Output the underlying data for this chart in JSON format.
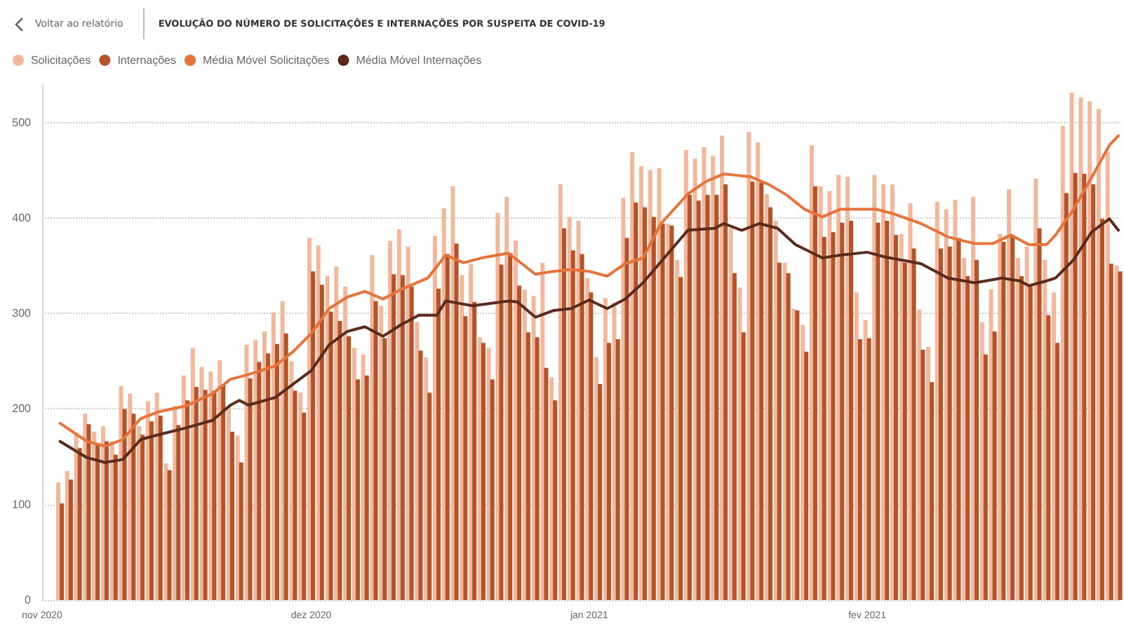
{
  "chart_data": {
    "type": "bar",
    "title": "EVOLUÇÃO DO NÚMERO DE SOLICITAÇÕES E INTERNAÇÕES POR SUSPEITA DE COVID-19",
    "annotations": [
      "Voltar ao relatório"
    ],
    "x": [
      "2020-11-03",
      "2020-11-04",
      "2020-11-05",
      "2020-11-06",
      "2020-11-07",
      "2020-11-08",
      "2020-11-09",
      "2020-11-10",
      "2020-11-11",
      "2020-11-12",
      "2020-11-13",
      "2020-11-14",
      "2020-11-15",
      "2020-11-16",
      "2020-11-17",
      "2020-11-18",
      "2020-11-19",
      "2020-11-20",
      "2020-11-21",
      "2020-11-22",
      "2020-11-23",
      "2020-11-24",
      "2020-11-25",
      "2020-11-26",
      "2020-11-27",
      "2020-11-28",
      "2020-11-29",
      "2020-11-30",
      "2020-12-01",
      "2020-12-02",
      "2020-12-03",
      "2020-12-04",
      "2020-12-05",
      "2020-12-06",
      "2020-12-07",
      "2020-12-08",
      "2020-12-09",
      "2020-12-10",
      "2020-12-11",
      "2020-12-12",
      "2020-12-13",
      "2020-12-14",
      "2020-12-15",
      "2020-12-16",
      "2020-12-17",
      "2020-12-18",
      "2020-12-19",
      "2020-12-20",
      "2020-12-21",
      "2020-12-22",
      "2020-12-23",
      "2020-12-24",
      "2020-12-25",
      "2020-12-26",
      "2020-12-27",
      "2020-12-28",
      "2020-12-29",
      "2020-12-30",
      "2020-12-31",
      "2021-01-01",
      "2021-01-02",
      "2021-01-03",
      "2021-01-04",
      "2021-01-05",
      "2021-01-06",
      "2021-01-07",
      "2021-01-08",
      "2021-01-09",
      "2021-01-10",
      "2021-01-11",
      "2021-01-12",
      "2021-01-13",
      "2021-01-14",
      "2021-01-15",
      "2021-01-16",
      "2021-01-17",
      "2021-01-18",
      "2021-01-19",
      "2021-01-20",
      "2021-01-21",
      "2021-01-22",
      "2021-01-23",
      "2021-01-24",
      "2021-01-25",
      "2021-01-26",
      "2021-01-27",
      "2021-01-28",
      "2021-01-29",
      "2021-01-30",
      "2021-01-31",
      "2021-02-01",
      "2021-02-02",
      "2021-02-03",
      "2021-02-04",
      "2021-02-05",
      "2021-02-06",
      "2021-02-07",
      "2021-02-08",
      "2021-02-09",
      "2021-02-10",
      "2021-02-11",
      "2021-02-12",
      "2021-02-13",
      "2021-02-14",
      "2021-02-15",
      "2021-02-16",
      "2021-02-17",
      "2021-02-18",
      "2021-02-19",
      "2021-02-20",
      "2021-02-21",
      "2021-02-22",
      "2021-02-23",
      "2021-02-24",
      "2021-02-25",
      "2021-02-26",
      "2021-02-27",
      "2021-02-28",
      "2021-03-01"
    ],
    "series": [
      {
        "name": "Solicitações",
        "color": "#f3b89c",
        "values": [
          123,
          135,
          175,
          195,
          176,
          182,
          166,
          224,
          216,
          182,
          208,
          217,
          143,
          203,
          235,
          264,
          244,
          239,
          251,
          202,
          172,
          267,
          272,
          281,
          301,
          313,
          250,
          217,
          379,
          371,
          339,
          349,
          328,
          264,
          257,
          361,
          308,
          376,
          388,
          370,
          291,
          254,
          381,
          410,
          433,
          340,
          352,
          275,
          264,
          405,
          422,
          376,
          325,
          318,
          353,
          233,
          435,
          401,
          397,
          337,
          254,
          316,
          311,
          421,
          469,
          454,
          450,
          452,
          394,
          356,
          471,
          462,
          474,
          465,
          486,
          389,
          327,
          490,
          479,
          425,
          397,
          353,
          305,
          288,
          476,
          433,
          428,
          445,
          443,
          322,
          293,
          445,
          435,
          435,
          383,
          415,
          304,
          265,
          417,
          409,
          419,
          358,
          422,
          291,
          325,
          383,
          430,
          358,
          370,
          441,
          356,
          322,
          496,
          531,
          526,
          522,
          514,
          469,
          350
        ]
      },
      {
        "name": "Internações",
        "color": "#b4532a",
        "values": [
          101,
          126,
          159,
          184,
          163,
          166,
          152,
          200,
          195,
          173,
          187,
          193,
          136,
          183,
          209,
          223,
          220,
          219,
          225,
          176,
          144,
          232,
          249,
          258,
          268,
          279,
          219,
          196,
          344,
          330,
          302,
          292,
          276,
          231,
          235,
          313,
          274,
          341,
          340,
          328,
          261,
          217,
          326,
          362,
          373,
          297,
          312,
          269,
          231,
          351,
          363,
          329,
          280,
          275,
          243,
          209,
          389,
          366,
          362,
          322,
          226,
          269,
          273,
          379,
          416,
          411,
          401,
          394,
          392,
          338,
          424,
          418,
          424,
          424,
          435,
          342,
          280,
          438,
          437,
          411,
          353,
          342,
          303,
          260,
          433,
          380,
          385,
          395,
          397,
          273,
          274,
          395,
          397,
          382,
          353,
          368,
          262,
          228,
          368,
          370,
          379,
          339,
          356,
          257,
          281,
          375,
          382,
          339,
          329,
          389,
          298,
          269,
          426,
          447,
          446,
          435,
          399,
          352,
          344
        ]
      },
      {
        "name": "Média Móvel Solicitações",
        "type": "line",
        "color": "#e8733a",
        "x": [
          "2020-11-03",
          "2020-11-06",
          "2020-11-08",
          "2020-11-10",
          "2020-11-12",
          "2020-11-14",
          "2020-11-17",
          "2020-11-20",
          "2020-11-22",
          "2020-11-24",
          "2020-11-27",
          "2020-11-29",
          "2020-12-01",
          "2020-12-03",
          "2020-12-05",
          "2020-12-07",
          "2020-12-09",
          "2020-12-11",
          "2020-12-14",
          "2020-12-16",
          "2020-12-18",
          "2020-12-20",
          "2020-12-23",
          "2020-12-26",
          "2020-12-28",
          "2020-12-30",
          "2021-01-01",
          "2021-01-03",
          "2021-01-05",
          "2021-01-07",
          "2021-01-09",
          "2021-01-12",
          "2021-01-14",
          "2021-01-16",
          "2021-01-19",
          "2021-01-21",
          "2021-01-23",
          "2021-01-25",
          "2021-01-27",
          "2021-01-29",
          "2021-02-02",
          "2021-02-04",
          "2021-02-07",
          "2021-02-10",
          "2021-02-13",
          "2021-02-15",
          "2021-02-17",
          "2021-02-19",
          "2021-02-21",
          "2021-02-22",
          "2021-02-24",
          "2021-02-26",
          "2021-02-28",
          "2021-03-01"
        ],
        "values": [
          185,
          166,
          161,
          168,
          190,
          197,
          203,
          216,
          231,
          236,
          245,
          260,
          279,
          305,
          317,
          323,
          315,
          325,
          337,
          361,
          353,
          358,
          363,
          341,
          344,
          346,
          344,
          339,
          352,
          358,
          394,
          425,
          438,
          446,
          443,
          435,
          424,
          409,
          401,
          409,
          409,
          404,
          394,
          380,
          373,
          373,
          382,
          372,
          372,
          382,
          409,
          442,
          476,
          486
        ]
      },
      {
        "name": "Média Móvel Internações",
        "type": "line",
        "color": "#5a2a1c",
        "x": [
          "2020-11-03",
          "2020-11-06",
          "2020-11-08",
          "2020-11-10",
          "2020-11-12",
          "2020-11-14",
          "2020-11-17",
          "2020-11-20",
          "2020-11-22",
          "2020-11-23",
          "2020-11-24",
          "2020-11-27",
          "2020-11-29",
          "2020-12-01",
          "2020-12-03",
          "2020-12-05",
          "2020-12-07",
          "2020-12-09",
          "2020-12-11",
          "2020-12-13",
          "2020-12-15",
          "2020-12-16",
          "2020-12-19",
          "2020-12-23",
          "2020-12-24",
          "2020-12-26",
          "2020-12-28",
          "2020-12-30",
          "2021-01-01",
          "2021-01-03",
          "2021-01-05",
          "2021-01-07",
          "2021-01-10",
          "2021-01-12",
          "2021-01-15",
          "2021-01-16",
          "2021-01-18",
          "2021-01-20",
          "2021-01-22",
          "2021-01-24",
          "2021-01-27",
          "2021-01-29",
          "2021-02-01",
          "2021-02-03",
          "2021-02-07",
          "2021-02-10",
          "2021-02-13",
          "2021-02-16",
          "2021-02-18",
          "2021-02-19",
          "2021-02-21",
          "2021-02-22",
          "2021-02-24",
          "2021-02-26",
          "2021-02-28",
          "2021-03-01"
        ],
        "values": [
          166,
          149,
          144,
          147,
          168,
          173,
          180,
          188,
          204,
          209,
          204,
          212,
          226,
          240,
          267,
          281,
          286,
          276,
          288,
          298,
          298,
          313,
          308,
          313,
          312,
          296,
          303,
          305,
          314,
          305,
          315,
          332,
          365,
          387,
          389,
          394,
          387,
          394,
          389,
          372,
          358,
          361,
          364,
          359,
          352,
          337,
          332,
          337,
          334,
          329,
          334,
          337,
          356,
          385,
          399,
          387
        ]
      }
    ],
    "xlim": [
      "2020-11-01",
      "2021-03-01"
    ],
    "xticks": [
      {
        "value": "2020-11-01",
        "label": "nov 2020"
      },
      {
        "value": "2020-12-01",
        "label": "dez 2020"
      },
      {
        "value": "2021-01-01",
        "label": "jan 2021"
      },
      {
        "value": "2021-02-01",
        "label": "fev 2021"
      }
    ],
    "ylim": [
      0,
      540
    ],
    "yticks": [
      0,
      100,
      200,
      300,
      400,
      500
    ],
    "grid": "y",
    "legend": "top left"
  }
}
